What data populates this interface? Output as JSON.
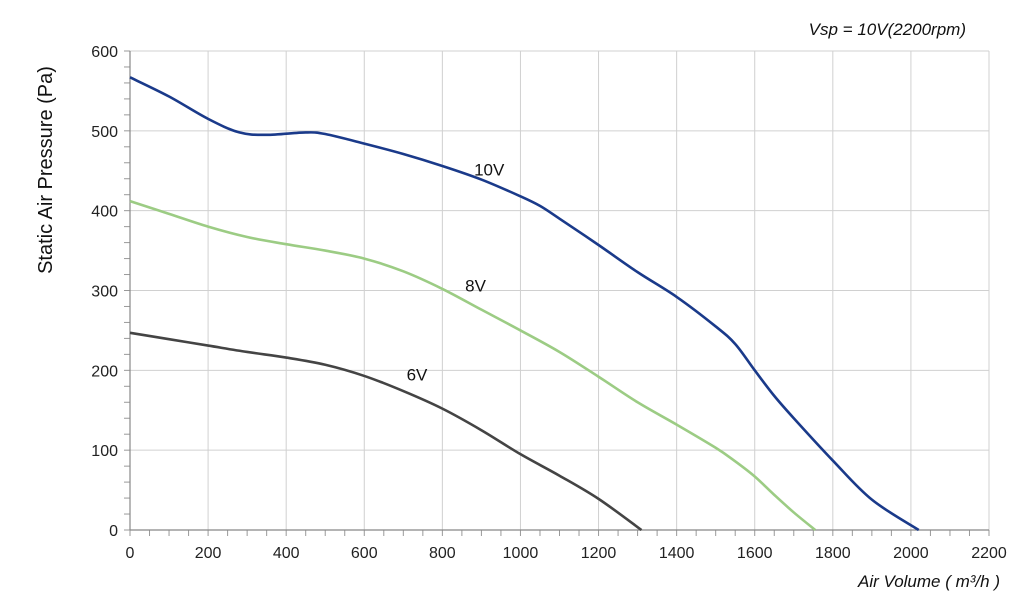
{
  "chart_data": {
    "type": "line",
    "annotation": "Vsp = 10V(2200rpm)",
    "xlabel": "Air Volume ( m³/h )",
    "ylabel": "Static Air Pressure  (Pa)",
    "xlim": [
      0,
      2200
    ],
    "ylim": [
      0,
      600
    ],
    "x_ticks": [
      0,
      200,
      400,
      600,
      800,
      1000,
      1200,
      1400,
      1600,
      1800,
      2000,
      2200
    ],
    "y_ticks": [
      0,
      100,
      200,
      300,
      400,
      500,
      600
    ],
    "x_tick_labels": [
      "0",
      "200",
      "400",
      "600",
      "800",
      "1000",
      "1200",
      "1400",
      "1600",
      "1800",
      "2000",
      "2200"
    ],
    "y_tick_labels": [
      "0",
      "100",
      "200",
      "300",
      "400",
      "500",
      "600"
    ],
    "grid": true,
    "series": [
      {
        "name": "10V",
        "color": "#1a3a8a",
        "points": [
          [
            0,
            567
          ],
          [
            100,
            543
          ],
          [
            200,
            515
          ],
          [
            280,
            498
          ],
          [
            350,
            495
          ],
          [
            450,
            498
          ],
          [
            500,
            496
          ],
          [
            600,
            484
          ],
          [
            700,
            471
          ],
          [
            800,
            456
          ],
          [
            900,
            439
          ],
          [
            1000,
            418
          ],
          [
            1050,
            406
          ],
          [
            1100,
            390
          ],
          [
            1200,
            357
          ],
          [
            1300,
            323
          ],
          [
            1400,
            292
          ],
          [
            1500,
            255
          ],
          [
            1550,
            233
          ],
          [
            1600,
            200
          ],
          [
            1650,
            168
          ],
          [
            1700,
            140
          ],
          [
            1800,
            87
          ],
          [
            1900,
            38
          ],
          [
            2020,
            0
          ]
        ]
      },
      {
        "name": "8V",
        "color": "#9ccc84",
        "points": [
          [
            0,
            412
          ],
          [
            100,
            396
          ],
          [
            200,
            380
          ],
          [
            300,
            367
          ],
          [
            400,
            358
          ],
          [
            500,
            350
          ],
          [
            600,
            340
          ],
          [
            700,
            324
          ],
          [
            800,
            302
          ],
          [
            900,
            276
          ],
          [
            1000,
            250
          ],
          [
            1100,
            223
          ],
          [
            1200,
            192
          ],
          [
            1300,
            160
          ],
          [
            1400,
            132
          ],
          [
            1500,
            103
          ],
          [
            1550,
            86
          ],
          [
            1600,
            67
          ],
          [
            1650,
            44
          ],
          [
            1700,
            22
          ],
          [
            1755,
            0
          ]
        ]
      },
      {
        "name": "6V",
        "color": "#444444",
        "points": [
          [
            0,
            247
          ],
          [
            100,
            239
          ],
          [
            200,
            231
          ],
          [
            300,
            223
          ],
          [
            400,
            216
          ],
          [
            500,
            207
          ],
          [
            600,
            193
          ],
          [
            700,
            174
          ],
          [
            800,
            152
          ],
          [
            900,
            125
          ],
          [
            1000,
            95
          ],
          [
            1100,
            68
          ],
          [
            1200,
            39
          ],
          [
            1310,
            0
          ]
        ]
      }
    ],
    "series_labels": [
      {
        "text": "10V",
        "x": 920,
        "y": 444
      },
      {
        "text": "8V",
        "x": 885,
        "y": 299
      },
      {
        "text": "6V",
        "x": 735,
        "y": 187
      }
    ]
  }
}
